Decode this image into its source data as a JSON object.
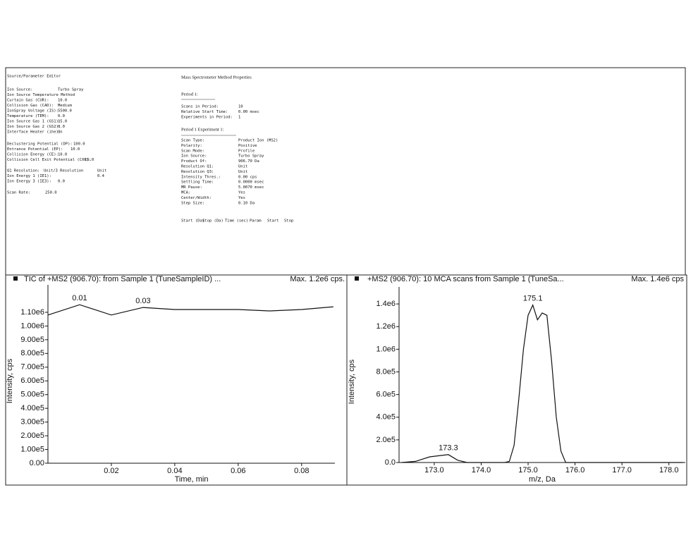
{
  "source_editor": {
    "title": "Source/Parameter Editor",
    "groups": [
      [
        [
          "Ion Source:",
          "Turbo Spray"
        ],
        [
          "Ion Source Temperature Method",
          null
        ],
        [
          "Curtain Gas (CUR):",
          "10.0"
        ],
        [
          "Collision Gas (CAD):",
          "Medium"
        ],
        [
          "IonSpray Voltage (IS):",
          "5500.0"
        ],
        [
          "Temperature (TEM):",
          "0.0"
        ],
        [
          "Ion Source Gas 1 (GS1):",
          "15.0"
        ],
        [
          "Ion Source Gas 2 (GS2):",
          "0.0"
        ],
        [
          "Interface Heater (ihe):",
          "On"
        ]
      ],
      [
        [
          "Declustering Potential (DP):",
          "100.0"
        ],
        [
          "Entrance Potential (EP):",
          "10.0"
        ],
        [
          "Collision Energy (CE):",
          "10.0"
        ],
        [
          "Collision Cell Exit Potential (CXP):",
          "15.0"
        ]
      ],
      [
        [
          "Q1 Resolution:",
          "Unit/3 Resolution",
          "Unit"
        ],
        [
          "Ion Energy 1 (IE1):",
          "0.4"
        ],
        [
          "Ion Energy 3 (IE3):",
          "0.0"
        ]
      ],
      [
        [
          "Scan Rate:",
          "250.0"
        ]
      ]
    ]
  },
  "method": {
    "title": "Mass Spectrometer Method Properties",
    "period": "Period 1:",
    "period_rows": [
      [
        "Scans in Period:",
        "10"
      ],
      [
        "Relative Start Time:",
        "0.00 msec"
      ],
      [
        "Experiments in Period:",
        "1"
      ]
    ],
    "experiment": "Period 1  Experiment   1:",
    "experiment_rows": [
      [
        "Scan Type:",
        "Product Ion (MS2)"
      ],
      [
        "Polarity:",
        "Positive"
      ],
      [
        "Scan Mode:",
        "Profile"
      ],
      [
        "Ion Source:",
        "Turbo Spray"
      ],
      [
        "Product Of:",
        "906.70 Da"
      ],
      [
        "Resolution Q1:",
        "Unit"
      ],
      [
        "Resolution Q3:",
        "Unit"
      ],
      [
        "Intensity Thres.:",
        "0.00 cps"
      ],
      [
        "Settling Time:",
        "0.0000 msec"
      ],
      [
        "MR Pause:",
        "5.0070 msec"
      ],
      [
        "MCA:",
        "Yes"
      ],
      [
        "Center/Width:",
        "Yes"
      ],
      [
        "Step Size:",
        "0.10 Da"
      ]
    ],
    "columns": [
      "Start (Da)",
      "Stop (Da)",
      "Time (sec)",
      "Param",
      "Start",
      "Stop"
    ]
  },
  "chart_data": [
    {
      "type": "line",
      "title": "TIC of +MS2 (906.70): from Sample 1 (TuneSampleID) ...",
      "subtitle": "Max. 1.2e6 cps.",
      "x_label": "Time, min",
      "y_label": "Intensity, cps",
      "color": "#111111",
      "x": [
        0.0,
        0.01,
        0.02,
        0.03,
        0.04,
        0.05,
        0.06,
        0.07,
        0.08,
        0.09
      ],
      "values": [
        1080000,
        1155000,
        1080000,
        1135000,
        1120000,
        1120000,
        1120000,
        1110000,
        1120000,
        1140000
      ],
      "x_labels": [
        null,
        "0.01",
        null,
        "0.03",
        null,
        null,
        null,
        null,
        null,
        null
      ],
      "xlim": [
        0,
        0.0905
      ],
      "xticks": [
        0.02,
        0.04,
        0.06,
        0.08
      ],
      "ylim": [
        0,
        1300000
      ],
      "yticks": [
        {
          "value": 0,
          "label": "0.00"
        },
        {
          "value": 100000,
          "label": "1.00e5"
        },
        {
          "value": 200000,
          "label": "2.00e5"
        },
        {
          "value": 300000,
          "label": "3.00e5"
        },
        {
          "value": 400000,
          "label": "4.00e5"
        },
        {
          "value": 500000,
          "label": "5.00e5"
        },
        {
          "value": 600000,
          "label": "6.00e5"
        },
        {
          "value": 700000,
          "label": "7.00e5"
        },
        {
          "value": 800000,
          "label": "8.00e5"
        },
        {
          "value": 900000,
          "label": "9.00e5"
        },
        {
          "value": 1000000,
          "label": "1.00e6"
        },
        {
          "value": 1100000,
          "label": "1.10e6"
        }
      ]
    },
    {
      "type": "line",
      "title": "+MS2 (906.70): 10 MCA scans from Sample 1 (TuneSa...",
      "subtitle": "Max. 1.4e6 cps",
      "x_label": "m/z, Da",
      "y_label": "Intensity, cps",
      "color": "#111111",
      "x": [
        172.3,
        172.6,
        172.9,
        173.1,
        173.3,
        173.5,
        173.7,
        174.0,
        174.3,
        174.5,
        174.6,
        174.7,
        174.8,
        174.9,
        175.0,
        175.1,
        175.2,
        175.3,
        175.4,
        175.5,
        175.6,
        175.7,
        175.8,
        176.0,
        176.5,
        177.0,
        177.5,
        178.0,
        178.3
      ],
      "values": [
        0,
        10000,
        50000,
        60000,
        70000,
        20000,
        0,
        0,
        0,
        0,
        10000,
        150000,
        550000,
        1000000,
        1300000,
        1390000,
        1260000,
        1320000,
        1300000,
        900000,
        400000,
        100000,
        0,
        0,
        0,
        0,
        0,
        0,
        0
      ],
      "x_labels": [
        null,
        null,
        null,
        null,
        "173.3",
        null,
        null,
        null,
        null,
        null,
        null,
        null,
        null,
        null,
        null,
        "175.1",
        null,
        null,
        null,
        null,
        null,
        null,
        null,
        null,
        null,
        null,
        null,
        null,
        null
      ],
      "xlim": [
        172.25,
        178.35
      ],
      "xticks": [
        {
          "value": 173,
          "label": "173.0"
        },
        {
          "value": 174,
          "label": "174.0"
        },
        {
          "value": 175,
          "label": "175.0"
        },
        {
          "value": 176,
          "label": "176.0"
        },
        {
          "value": 177,
          "label": "177.0"
        },
        {
          "value": 178,
          "label": "178.0"
        }
      ],
      "ylim": [
        0,
        1550000
      ],
      "yticks": [
        {
          "value": 0,
          "label": "0.0"
        },
        {
          "value": 200000,
          "label": "2.0e5"
        },
        {
          "value": 400000,
          "label": "4.0e5"
        },
        {
          "value": 600000,
          "label": "6.0e5"
        },
        {
          "value": 800000,
          "label": "8.0e5"
        },
        {
          "value": 1000000,
          "label": "1.0e6"
        },
        {
          "value": 1200000,
          "label": "1.2e6"
        },
        {
          "value": 1400000,
          "label": "1.4e6"
        }
      ]
    }
  ]
}
